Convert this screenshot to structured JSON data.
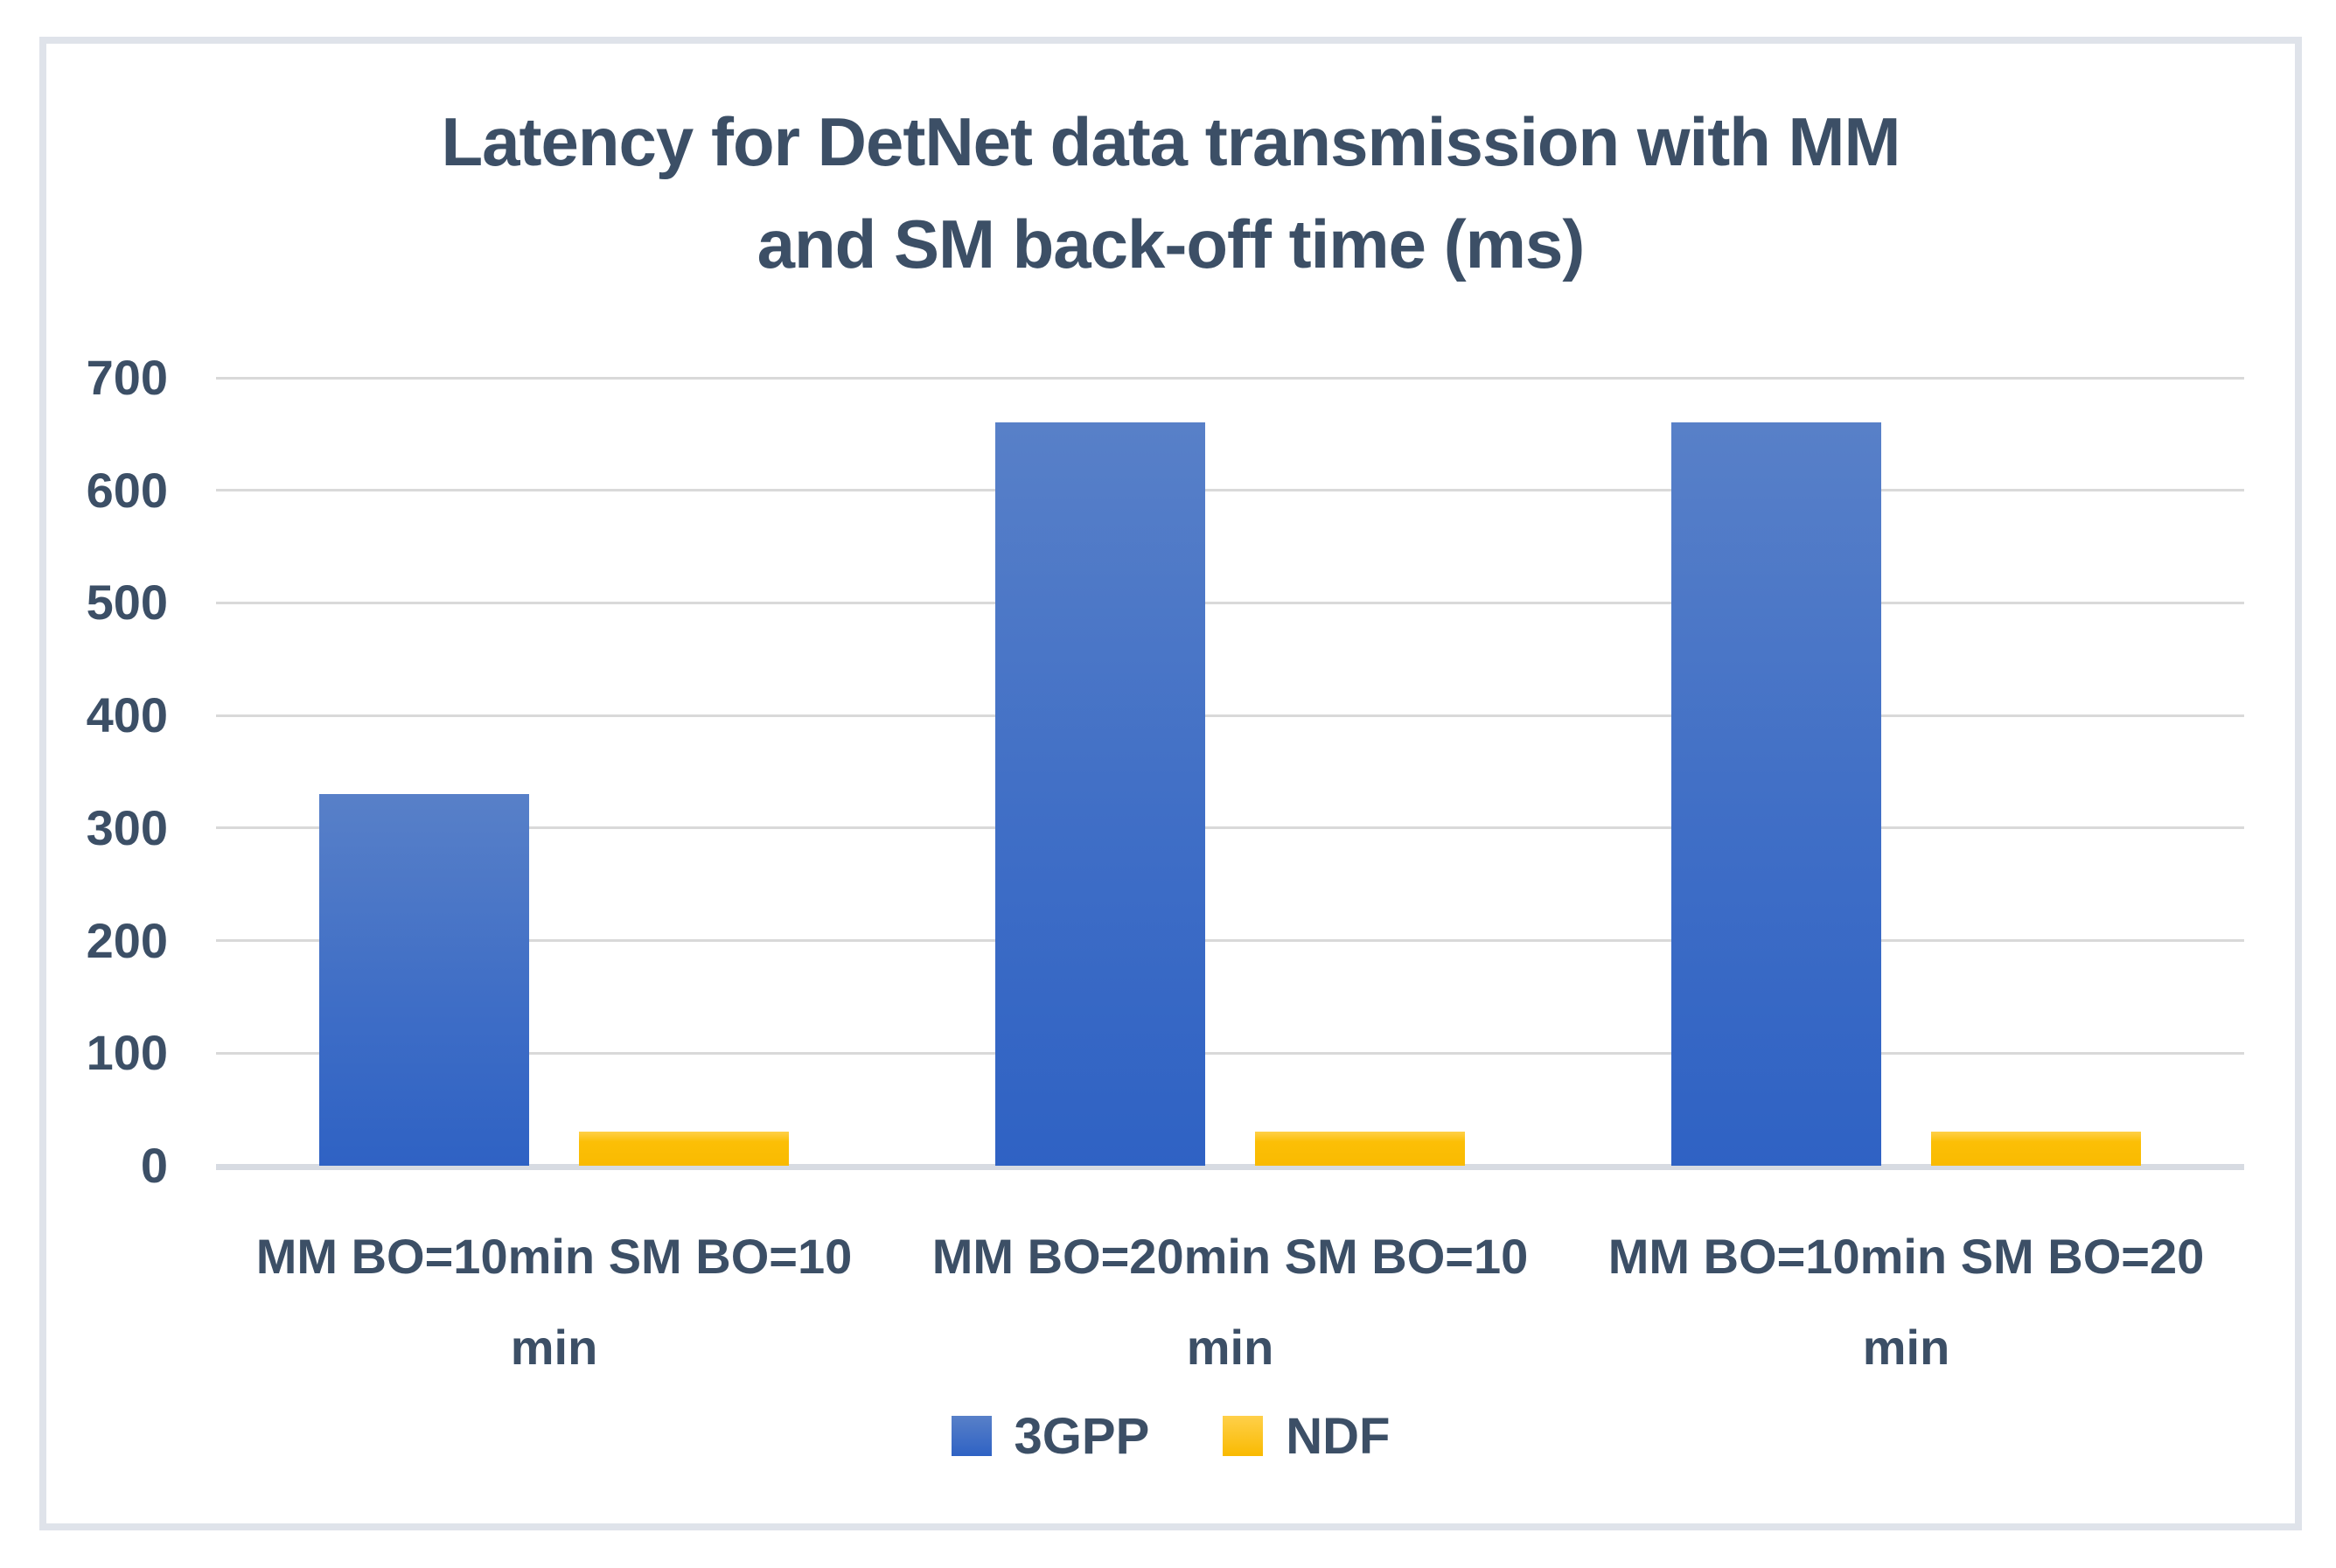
{
  "chart_data": {
    "type": "bar",
    "title": "Latency for DetNet data transmission with MM and SM back-off time (ms)",
    "title_lines": [
      "Latency for DetNet data transmission with MM",
      "and SM back-off time (ms)"
    ],
    "categories": [
      "MM BO=10min SM BO=10 min",
      "MM BO=20min SM BO=10 min",
      "MM BO=10min SM BO=20 min"
    ],
    "category_lines": [
      [
        "MM BO=10min SM BO=10",
        "min"
      ],
      [
        "MM BO=20min SM BO=10",
        "min"
      ],
      [
        "MM BO=10min SM BO=20",
        "min"
      ]
    ],
    "series": [
      {
        "name": "3GPP",
        "values": [
          330,
          660,
          660
        ]
      },
      {
        "name": "NDF",
        "values": [
          30,
          30,
          30
        ]
      }
    ],
    "xlabel": "",
    "ylabel": "",
    "ylim": [
      0,
      700
    ],
    "y_ticks": [
      700,
      600,
      500,
      400,
      300,
      200,
      100,
      0
    ],
    "grid": true,
    "legend_position": "bottom"
  },
  "colors": {
    "series_3gpp": "#3f6ec6",
    "series_ndf": "#fcbf06",
    "text": "#3c4f66",
    "gridline": "#d9d9d9",
    "axis_line": "#d7dbe2",
    "frame_border": "#dfe3ea",
    "background": "#ffffff"
  }
}
